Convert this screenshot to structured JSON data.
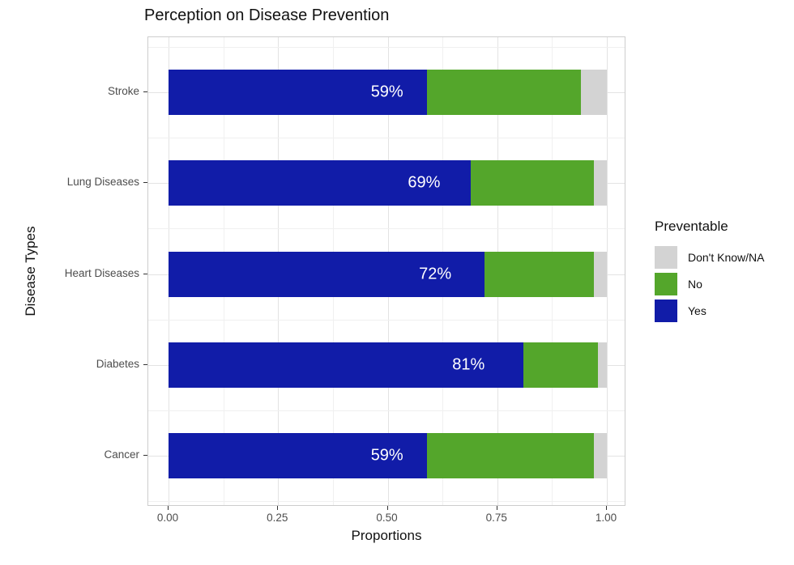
{
  "title": "Perception on Disease Prevention",
  "chart_data": {
    "type": "bar",
    "orientation": "horizontal",
    "stacked": true,
    "title": "Perception on Disease Prevention",
    "xlabel": "Proportions",
    "ylabel": "Disease Types",
    "categories": [
      "Stroke",
      "Lung Diseases",
      "Heart Diseases",
      "Diabetes",
      "Cancer"
    ],
    "series": [
      {
        "name": "Yes",
        "color": "#111CA8",
        "values": [
          0.59,
          0.69,
          0.72,
          0.81,
          0.59
        ],
        "bar_labels": [
          "59%",
          "69%",
          "72%",
          "81%",
          "59%"
        ]
      },
      {
        "name": "No",
        "color": "#54A62B",
        "values": [
          0.35,
          0.28,
          0.25,
          0.17,
          0.38
        ]
      },
      {
        "name": "Don't Know/NA",
        "color": "#D3D3D3",
        "values": [
          0.06,
          0.03,
          0.03,
          0.02,
          0.03
        ]
      }
    ],
    "x_tick_labels": [
      "0.00",
      "0.25",
      "0.50",
      "0.75",
      "1.00"
    ],
    "x_tick_values": [
      0,
      0.25,
      0.5,
      0.75,
      1.0
    ],
    "xlim": [
      0,
      1.05
    ],
    "grid": true,
    "bar_label_color": "#FFFFFF",
    "legend": {
      "title": "Preventable",
      "position": "right",
      "items": [
        "Don't Know/NA",
        "No",
        "Yes"
      ]
    }
  }
}
